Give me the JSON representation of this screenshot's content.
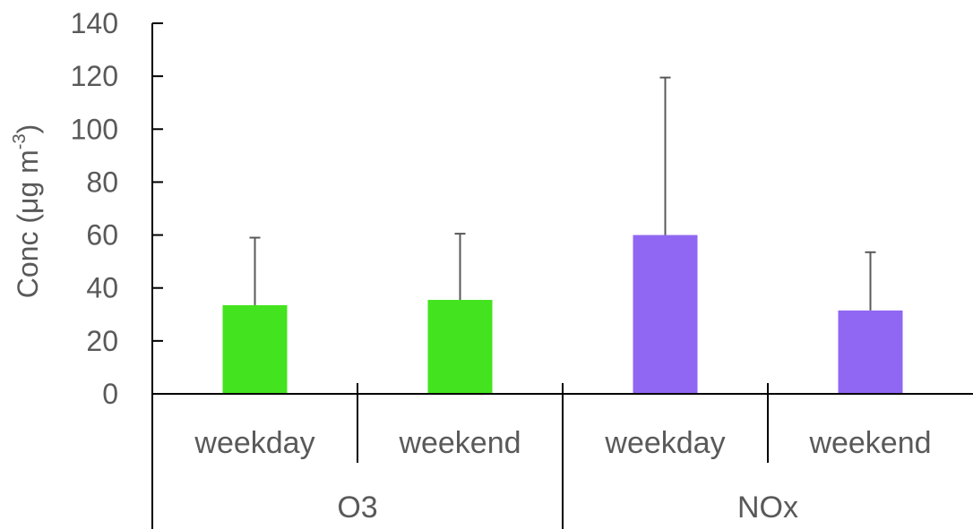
{
  "chart_data": {
    "type": "bar",
    "groups": [
      "O3",
      "NOx"
    ],
    "categories": [
      "weekday",
      "weekend",
      "weekday",
      "weekend"
    ],
    "category_groups": [
      "O3",
      "O3",
      "NOx",
      "NOx"
    ],
    "values": [
      33.5,
      35.5,
      60,
      31.5
    ],
    "errors_upper": [
      25.5,
      25.0,
      59.5,
      22.0
    ],
    "bar_colors": [
      "#44e31f",
      "#44e31f",
      "#9067f2",
      "#9067f2"
    ],
    "ylabel_main": "Conc (μg m",
    "ylabel_sup": "-3",
    "ylabel_end": ")",
    "ylim": [
      0,
      140
    ],
    "yticks": [
      0,
      20,
      40,
      60,
      80,
      100,
      120,
      140
    ],
    "grid": false,
    "legend": "none"
  }
}
